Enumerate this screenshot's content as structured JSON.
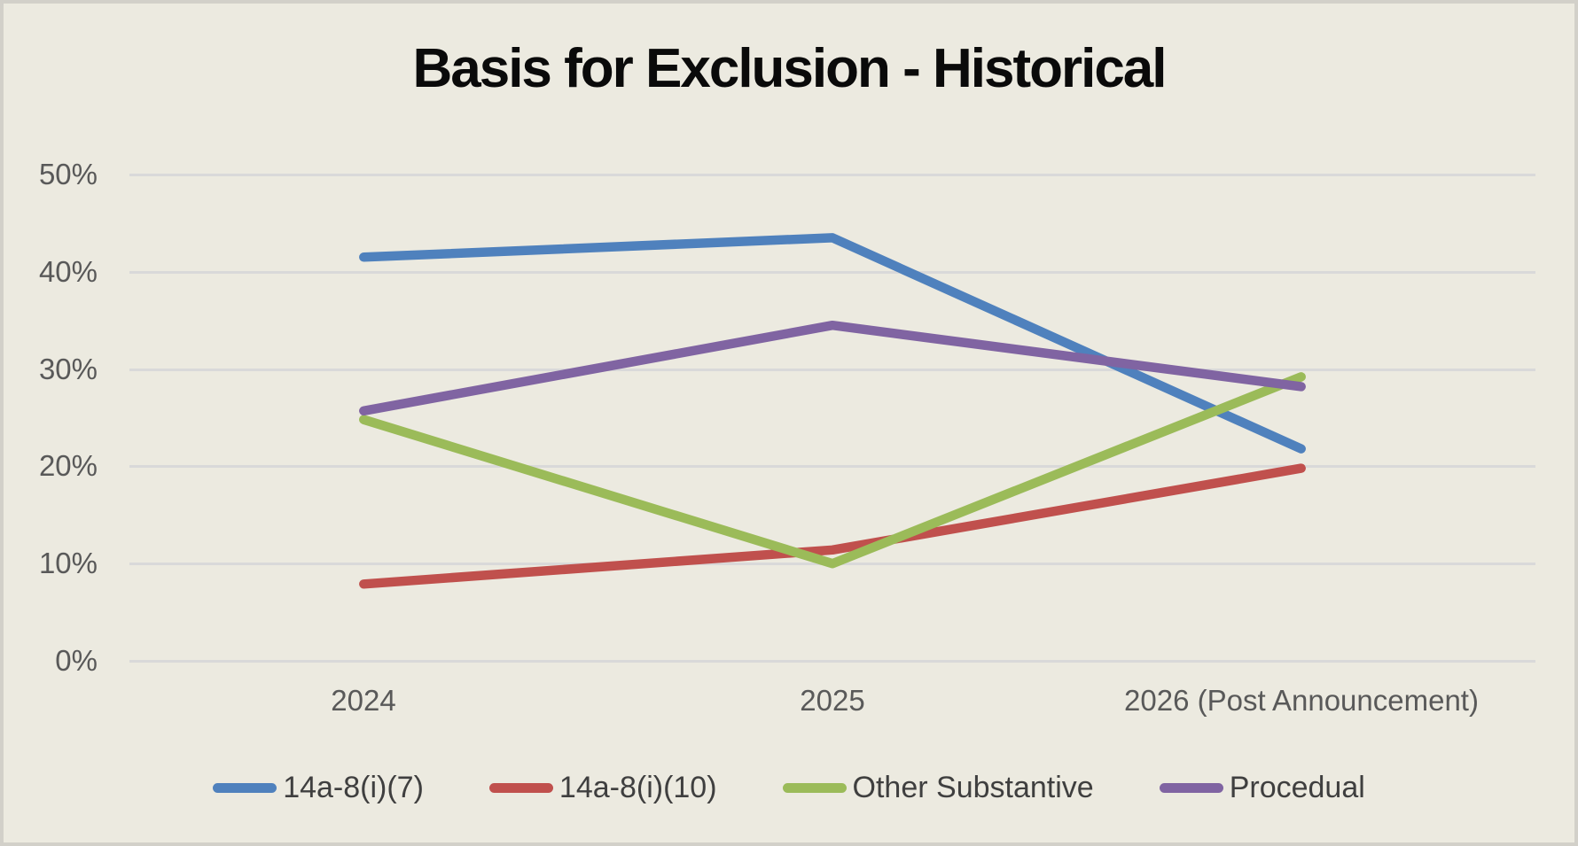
{
  "chart_data": {
    "type": "line",
    "title": "Basis for Exclusion - Historical",
    "categories": [
      "2024",
      "2025",
      "2026 (Post Announcement)"
    ],
    "series": [
      {
        "name": "14a-8(i)(7)",
        "color": "#4F81BD",
        "values": [
          41.5,
          43.5,
          21.8
        ]
      },
      {
        "name": "14a-8(i)(10)",
        "color": "#C0504D",
        "values": [
          7.9,
          11.4,
          19.8
        ]
      },
      {
        "name": "Other Substantive",
        "color": "#9BBB59",
        "values": [
          24.8,
          10.0,
          29.2
        ]
      },
      {
        "name": "Procedual",
        "color": "#8064A2",
        "values": [
          25.7,
          34.5,
          28.2
        ]
      }
    ],
    "ylim": [
      0,
      50
    ],
    "ytick_labels": [
      "50%",
      "40%",
      "30%",
      "20%",
      "10%",
      "0%"
    ],
    "grid": "horizontal",
    "legend_position": "bottom",
    "colors": {
      "background": "#ECEAE0",
      "border": "#D2D0C9",
      "gridline": "#D9D9D9",
      "axis_text": "#595959",
      "title_text": "#0A0A0A",
      "legend_text": "#3F3F3F"
    }
  }
}
